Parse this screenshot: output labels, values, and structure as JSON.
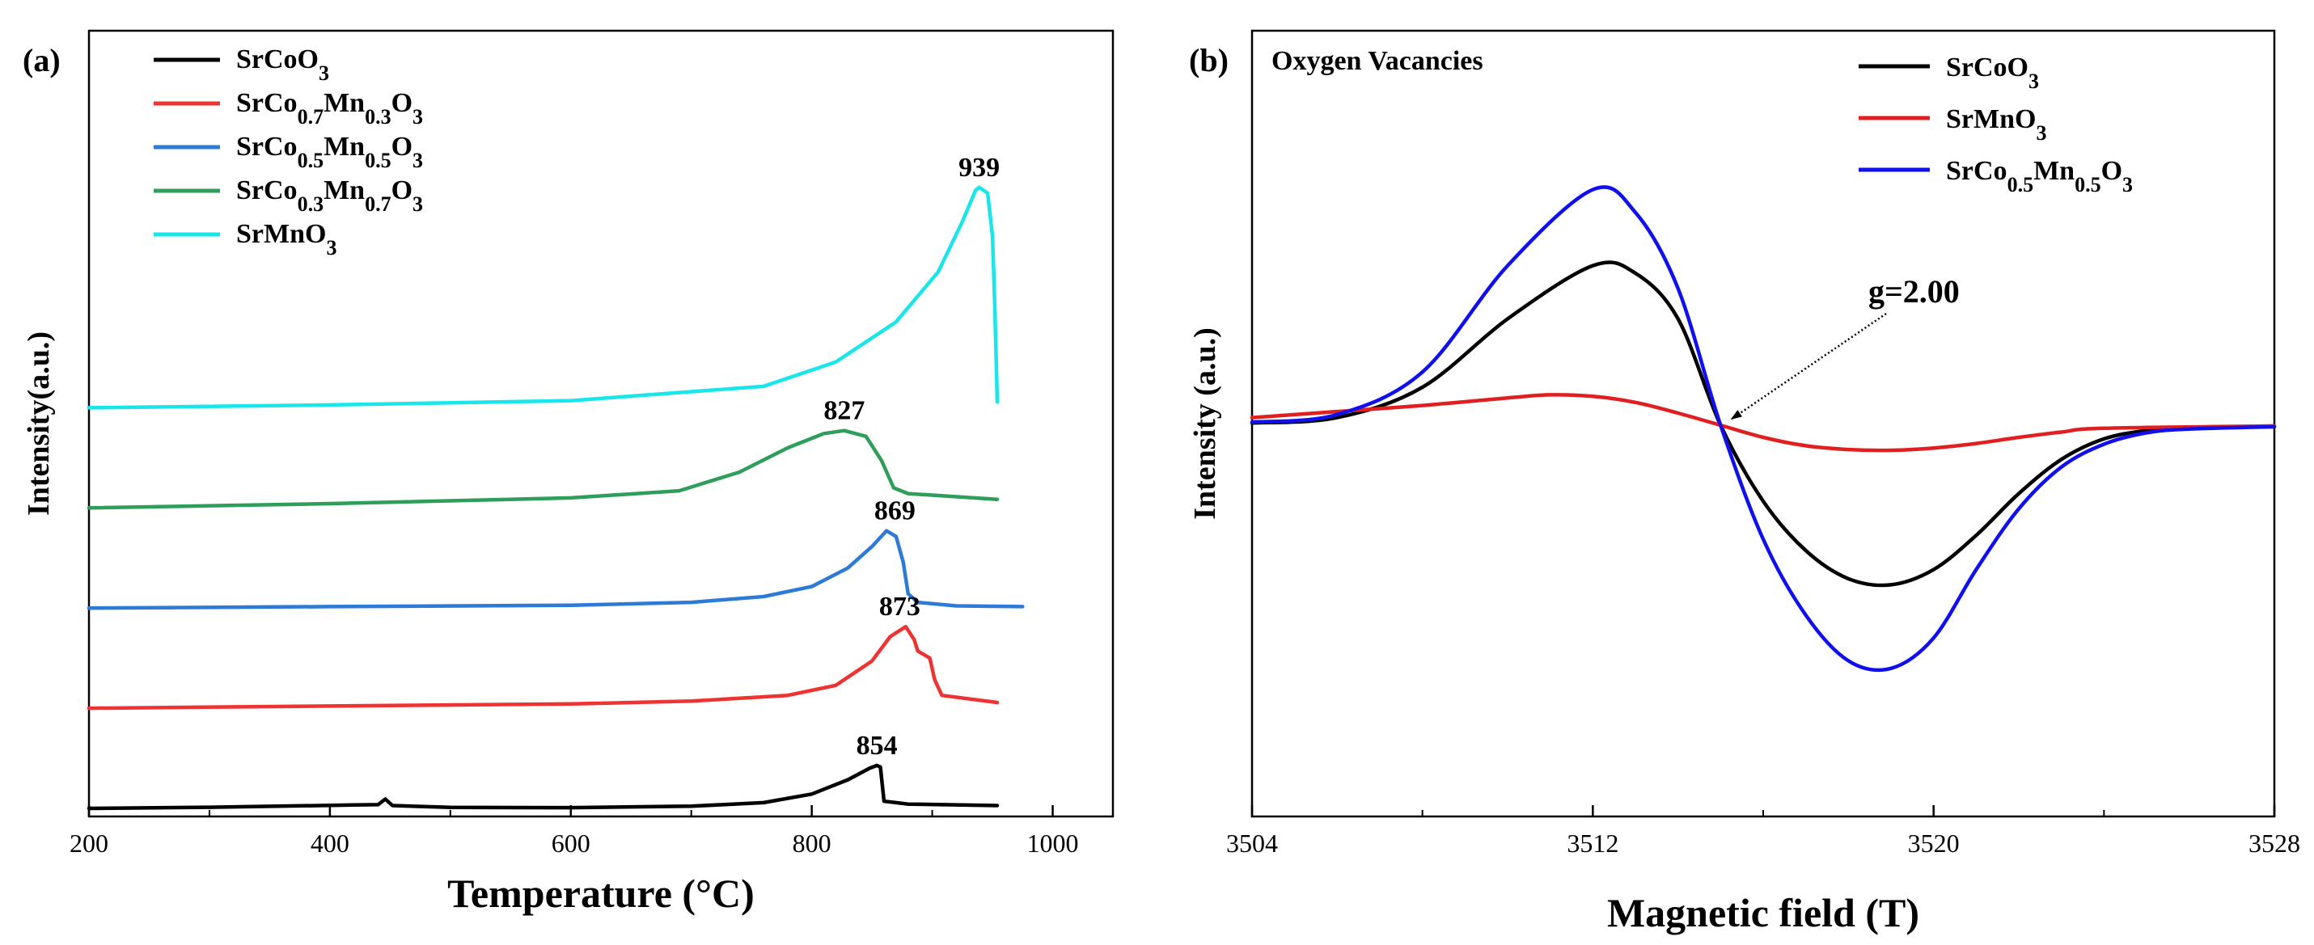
{
  "chart_data": [
    {
      "type": "line",
      "panel_label": "(a)",
      "xlabel": "Temperature (°C)",
      "ylabel": "Intensity(a.u.)",
      "xlim": [
        200,
        1050
      ],
      "x_ticks": [
        200,
        400,
        600,
        800,
        1000
      ],
      "y_ticks_shown": false,
      "legend_position": "top-left",
      "series": [
        {
          "name": "SrCoO3",
          "legend": [
            [
              "SrCoO",
              ""
            ],
            [
              "3",
              "sub"
            ]
          ],
          "color": "#000000",
          "baseline": 0.0,
          "points": [
            [
              200,
              0.0
            ],
            [
              300,
              0.8
            ],
            [
              420,
              2.4
            ],
            [
              440,
              2.6
            ],
            [
              446,
              6.5
            ],
            [
              452,
              2.0
            ],
            [
              500,
              0.7
            ],
            [
              600,
              0.5
            ],
            [
              700,
              1.5
            ],
            [
              760,
              4.0
            ],
            [
              800,
              10.0
            ],
            [
              830,
              20.0
            ],
            [
              848,
              28.0
            ],
            [
              854,
              30.0
            ],
            [
              857,
              29.0
            ],
            [
              860,
              5.0
            ],
            [
              880,
              3.0
            ],
            [
              954,
              2.0
            ]
          ],
          "peak_label": "854",
          "peak_x": 854
        },
        {
          "name": "SrCo0.7Mn0.3O3",
          "legend": [
            [
              "SrCo",
              ""
            ],
            [
              "0.7",
              "sub"
            ],
            [
              "Mn",
              ""
            ],
            [
              "0.3",
              "sub"
            ],
            [
              "O",
              ""
            ],
            [
              "3",
              "sub"
            ]
          ],
          "color": "#ee3333",
          "baseline": 70.0,
          "points": [
            [
              200,
              70.0
            ],
            [
              400,
              71.5
            ],
            [
              600,
              73.0
            ],
            [
              700,
              75.0
            ],
            [
              780,
              79.0
            ],
            [
              820,
              86.0
            ],
            [
              850,
              103.0
            ],
            [
              865,
              120.0
            ],
            [
              878,
              127.0
            ],
            [
              885,
              118.0
            ],
            [
              888,
              110.0
            ],
            [
              898,
              105.0
            ],
            [
              902,
              90.0
            ],
            [
              908,
              79.0
            ],
            [
              954,
              74.0
            ]
          ],
          "peak_label": "873",
          "peak_x": 873
        },
        {
          "name": "SrCo0.5Mn0.5O3",
          "legend": [
            [
              "SrCo",
              ""
            ],
            [
              "0.5",
              "sub"
            ],
            [
              "Mn",
              ""
            ],
            [
              "0.5",
              "sub"
            ],
            [
              "O",
              ""
            ],
            [
              "3",
              "sub"
            ]
          ],
          "color": "#2e7bd6",
          "baseline": 140.0,
          "points": [
            [
              200,
              140.0
            ],
            [
              400,
              141.0
            ],
            [
              600,
              142.0
            ],
            [
              700,
              144.0
            ],
            [
              760,
              148.0
            ],
            [
              800,
              155.0
            ],
            [
              830,
              168.0
            ],
            [
              850,
              183.0
            ],
            [
              862,
              194.0
            ],
            [
              870,
              190.0
            ],
            [
              876,
              172.0
            ],
            [
              880,
              150.0
            ],
            [
              888,
              144.0
            ],
            [
              920,
              141.5
            ],
            [
              975,
              141.0
            ]
          ],
          "peak_label": "869",
          "peak_x": 869
        },
        {
          "name": "SrCo0.3Mn0.7O3",
          "legend": [
            [
              "SrCo",
              ""
            ],
            [
              "0.3",
              "sub"
            ],
            [
              "Mn",
              ""
            ],
            [
              "0.7",
              "sub"
            ],
            [
              "O",
              ""
            ],
            [
              "3",
              "sub"
            ]
          ],
          "color": "#2f9e5a",
          "baseline": 210.0,
          "points": [
            [
              200,
              210.0
            ],
            [
              400,
              213.0
            ],
            [
              600,
              217.0
            ],
            [
              690,
              222.0
            ],
            [
              740,
              235.0
            ],
            [
              780,
              252.0
            ],
            [
              810,
              262.0
            ],
            [
              827,
              264.0
            ],
            [
              845,
              260.0
            ],
            [
              858,
              243.0
            ],
            [
              868,
              224.0
            ],
            [
              880,
              220.0
            ],
            [
              954,
              216.0
            ]
          ],
          "peak_label": "827",
          "peak_x": 827
        },
        {
          "name": "SrMnO3",
          "legend": [
            [
              "SrMnO",
              ""
            ],
            [
              "3",
              "sub"
            ]
          ],
          "color": "#18e6ea",
          "baseline": 280.0,
          "points": [
            [
              200,
              280.0
            ],
            [
              400,
              282.0
            ],
            [
              600,
              285.0
            ],
            [
              760,
              295.0
            ],
            [
              820,
              312.0
            ],
            [
              870,
              340.0
            ],
            [
              905,
              375.0
            ],
            [
              925,
              410.0
            ],
            [
              936,
              432.0
            ],
            [
              939,
              434.0
            ],
            [
              946,
              430.0
            ],
            [
              950,
              400.0
            ],
            [
              952,
              350.0
            ],
            [
              954,
              284.0
            ]
          ],
          "peak_label": "939",
          "peak_x": 939
        }
      ]
    },
    {
      "type": "line",
      "panel_label": "(b)",
      "title": "Oxygen Vacancies",
      "xlabel": "Magnetic field (T)",
      "ylabel": "Intensity (a.u.)",
      "xlim": [
        3504,
        3528
      ],
      "x_ticks": [
        3504,
        3512,
        3520,
        3528
      ],
      "y_ticks_shown": false,
      "legend_position": "top-right",
      "crossing_point": [
        3515,
        0.0
      ],
      "annotation": "g=2.00",
      "series": [
        {
          "name": "SrCoO3",
          "legend": [
            [
              "SrCoO",
              ""
            ],
            [
              "3",
              "sub"
            ]
          ],
          "color": "#000000",
          "points": [
            [
              3504,
              0.3
            ],
            [
              3506,
              1.0
            ],
            [
              3508,
              5.0
            ],
            [
              3510,
              14.0
            ],
            [
              3512,
              21.0
            ],
            [
              3513,
              20.0
            ],
            [
              3514,
              14.0
            ],
            [
              3515,
              0.0
            ],
            [
              3516,
              -10.0
            ],
            [
              3517,
              -16.5
            ],
            [
              3518,
              -20.2
            ],
            [
              3519,
              -21.0
            ],
            [
              3520,
              -19.0
            ],
            [
              3521,
              -14.5
            ],
            [
              3522,
              -9.0
            ],
            [
              3523,
              -4.5
            ],
            [
              3524,
              -1.8
            ],
            [
              3525,
              -0.7
            ],
            [
              3526,
              -0.3
            ],
            [
              3528,
              -0.2
            ]
          ]
        },
        {
          "name": "SrMnO3",
          "legend": [
            [
              "SrMnO",
              ""
            ],
            [
              "3",
              "sub"
            ]
          ],
          "color": "#e02020",
          "points": [
            [
              3504,
              1.0
            ],
            [
              3506,
              1.8
            ],
            [
              3508,
              2.6
            ],
            [
              3510,
              3.6
            ],
            [
              3511,
              4.0
            ],
            [
              3512,
              3.8
            ],
            [
              3513,
              3.0
            ],
            [
              3514,
              1.6
            ],
            [
              3515,
              0.0
            ],
            [
              3516,
              -1.6
            ],
            [
              3517,
              -2.7
            ],
            [
              3518,
              -3.2
            ],
            [
              3519,
              -3.3
            ],
            [
              3520,
              -3.0
            ],
            [
              3521,
              -2.4
            ],
            [
              3522,
              -1.6
            ],
            [
              3523,
              -0.9
            ],
            [
              3524,
              -0.4
            ],
            [
              3528,
              -0.1
            ]
          ]
        },
        {
          "name": "SrCo0.5Mn0.5O3",
          "legend": [
            [
              "SrCo",
              ""
            ],
            [
              "0.5",
              "sub"
            ],
            [
              "Mn",
              ""
            ],
            [
              "0.5",
              "sub"
            ],
            [
              "O",
              ""
            ],
            [
              "3",
              "sub"
            ]
          ],
          "color": "#1010ee",
          "points": [
            [
              3504,
              0.4
            ],
            [
              3506,
              1.4
            ],
            [
              3508,
              7.0
            ],
            [
              3510,
              21.0
            ],
            [
              3512,
              31.0
            ],
            [
              3513,
              28.0
            ],
            [
              3514,
              18.0
            ],
            [
              3515,
              0.0
            ],
            [
              3516,
              -15.0
            ],
            [
              3517,
              -25.0
            ],
            [
              3518,
              -31.0
            ],
            [
              3519,
              -32.0
            ],
            [
              3520,
              -28.0
            ],
            [
              3521,
              -19.0
            ],
            [
              3522,
              -11.0
            ],
            [
              3523,
              -5.5
            ],
            [
              3524,
              -2.5
            ],
            [
              3525,
              -1.0
            ],
            [
              3526,
              -0.5
            ],
            [
              3528,
              -0.2
            ]
          ]
        }
      ]
    }
  ]
}
